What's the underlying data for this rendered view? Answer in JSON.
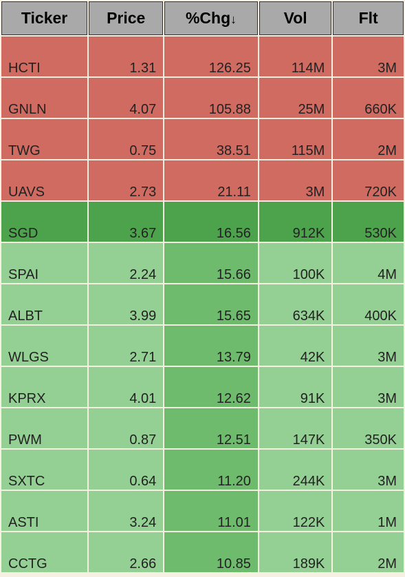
{
  "table": {
    "columns": [
      {
        "label": "Ticker",
        "key": "ticker",
        "sortable": true,
        "sorted": false
      },
      {
        "label": "Price",
        "key": "price",
        "sortable": true,
        "sorted": false
      },
      {
        "label": "%Chg",
        "key": "pct_chg",
        "sortable": true,
        "sorted": true,
        "sort_dir": "desc",
        "sort_glyph": "↓"
      },
      {
        "label": "Vol",
        "key": "vol",
        "sortable": true,
        "sorted": false
      },
      {
        "label": "Flt",
        "key": "flt",
        "sortable": true,
        "sorted": false
      }
    ],
    "colors": {
      "red": "#d06b62",
      "dark_green": "#4da24c",
      "light_green": "#94cf93",
      "mid_green": "#6ebb6d",
      "header_bg": "#a9a9a9",
      "gap": "#f5f0e1"
    },
    "rows": [
      {
        "ticker": "HCTI",
        "price": "1.31",
        "pct_chg": "126.25",
        "vol": "114M",
        "flt": "3M",
        "cell_colors": [
          "#d06b62",
          "#d06b62",
          "#d06b62",
          "#d06b62",
          "#d06b62"
        ]
      },
      {
        "ticker": "GNLN",
        "price": "4.07",
        "pct_chg": "105.88",
        "vol": "25M",
        "flt": "660K",
        "cell_colors": [
          "#d06b62",
          "#d06b62",
          "#d06b62",
          "#d06b62",
          "#d06b62"
        ]
      },
      {
        "ticker": "TWG",
        "price": "0.75",
        "pct_chg": "38.51",
        "vol": "115M",
        "flt": "2M",
        "cell_colors": [
          "#d06b62",
          "#d06b62",
          "#d06b62",
          "#d06b62",
          "#d06b62"
        ]
      },
      {
        "ticker": "UAVS",
        "price": "2.73",
        "pct_chg": "21.11",
        "vol": "3M",
        "flt": "720K",
        "cell_colors": [
          "#d06b62",
          "#d06b62",
          "#d06b62",
          "#d06b62",
          "#d06b62"
        ]
      },
      {
        "ticker": "SGD",
        "price": "3.67",
        "pct_chg": "16.56",
        "vol": "912K",
        "flt": "530K",
        "cell_colors": [
          "#4da24c",
          "#4da24c",
          "#4da24c",
          "#4da24c",
          "#4da24c"
        ]
      },
      {
        "ticker": "SPAI",
        "price": "2.24",
        "pct_chg": "15.66",
        "vol": "100K",
        "flt": "4M",
        "cell_colors": [
          "#94cf93",
          "#94cf93",
          "#6ebb6d",
          "#94cf93",
          "#94cf93"
        ]
      },
      {
        "ticker": "ALBT",
        "price": "3.99",
        "pct_chg": "15.65",
        "vol": "634K",
        "flt": "400K",
        "cell_colors": [
          "#94cf93",
          "#94cf93",
          "#6ebb6d",
          "#94cf93",
          "#94cf93"
        ]
      },
      {
        "ticker": "WLGS",
        "price": "2.71",
        "pct_chg": "13.79",
        "vol": "42K",
        "flt": "3M",
        "cell_colors": [
          "#94cf93",
          "#94cf93",
          "#6ebb6d",
          "#94cf93",
          "#94cf93"
        ]
      },
      {
        "ticker": "KPRX",
        "price": "4.01",
        "pct_chg": "12.62",
        "vol": "91K",
        "flt": "3M",
        "cell_colors": [
          "#94cf93",
          "#94cf93",
          "#6ebb6d",
          "#94cf93",
          "#94cf93"
        ]
      },
      {
        "ticker": "PWM",
        "price": "0.87",
        "pct_chg": "12.51",
        "vol": "147K",
        "flt": "350K",
        "cell_colors": [
          "#94cf93",
          "#94cf93",
          "#6ebb6d",
          "#94cf93",
          "#94cf93"
        ]
      },
      {
        "ticker": "SXTC",
        "price": "0.64",
        "pct_chg": "11.20",
        "vol": "244K",
        "flt": "3M",
        "cell_colors": [
          "#94cf93",
          "#94cf93",
          "#6ebb6d",
          "#94cf93",
          "#94cf93"
        ]
      },
      {
        "ticker": "ASTI",
        "price": "3.24",
        "pct_chg": "11.01",
        "vol": "122K",
        "flt": "1M",
        "cell_colors": [
          "#94cf93",
          "#94cf93",
          "#6ebb6d",
          "#94cf93",
          "#94cf93"
        ]
      },
      {
        "ticker": "CCTG",
        "price": "2.66",
        "pct_chg": "10.85",
        "vol": "189K",
        "flt": "2M",
        "cell_colors": [
          "#94cf93",
          "#94cf93",
          "#6ebb6d",
          "#94cf93",
          "#94cf93"
        ]
      }
    ]
  }
}
